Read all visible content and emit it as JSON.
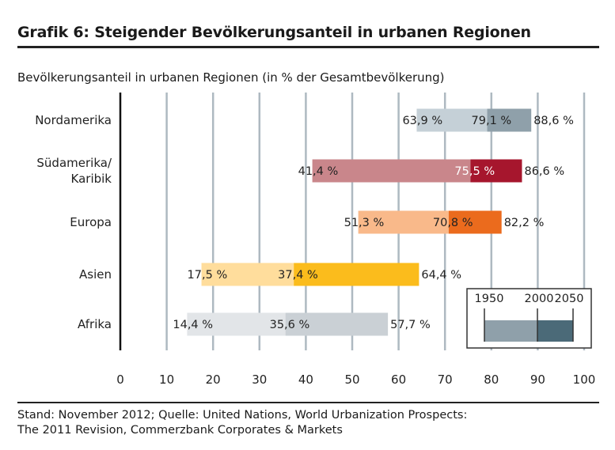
{
  "header": {
    "title": "Grafik 6: Steigender Bevölkerungsanteil in urbanen Regionen",
    "subtitle": "Bevölkerungsanteil in urbanen Regionen (in % der Gesamtbevölkerung)"
  },
  "footer": {
    "line1": "Stand: November 2012; Quelle: United Nations, World Urbanization Prospects:",
    "line2": "The 2011 Revision, Commerzbank Corporates & Markets"
  },
  "chart_data": {
    "type": "bar",
    "orientation": "horizontal-range",
    "xlim": [
      0,
      100
    ],
    "xticks": [
      0,
      10,
      20,
      30,
      40,
      50,
      60,
      70,
      80,
      90,
      100
    ],
    "grid": true,
    "legend": {
      "placement": "bottom-right",
      "labels": [
        "1950",
        "2000",
        "2050"
      ],
      "colors": [
        "#8fa0aa",
        "#4b6a78"
      ]
    },
    "categories": [
      {
        "name": "Nordamerika",
        "values": {
          "1950": 63.9,
          "2000": 79.1,
          "2050": 88.6
        },
        "labels": [
          "63,9 %",
          "79,1 %",
          "88,6 %"
        ],
        "colors": {
          "light": "#c5d0d7",
          "dark": "#8fa0aa"
        }
      },
      {
        "name": "Südamerika/ Karibik",
        "lines": [
          "Südamerika/",
          "Karibik"
        ],
        "values": {
          "1950": 41.4,
          "2000": 75.5,
          "2050": 86.6
        },
        "labels": [
          "41,4 %",
          "75,5 %",
          "86,6 %"
        ],
        "colors": {
          "light": "#c9868b",
          "dark": "#a6162d"
        }
      },
      {
        "name": "Europa",
        "values": {
          "1950": 51.3,
          "2000": 70.8,
          "2050": 82.2
        },
        "labels": [
          "51,3 %",
          "70,8 %",
          "82,2 %"
        ],
        "colors": {
          "light": "#f9b98a",
          "dark": "#eb6b1d"
        }
      },
      {
        "name": "Asien",
        "values": {
          "1950": 17.5,
          "2000": 37.4,
          "2050": 64.4
        },
        "labels": [
          "17,5 %",
          "37,4 %",
          "64,4 %"
        ],
        "colors": {
          "light": "#ffdd9c",
          "dark": "#fbbc1c"
        }
      },
      {
        "name": "Afrika",
        "values": {
          "1950": 14.4,
          "2000": 35.6,
          "2050": 57.7
        },
        "labels": [
          "14,4 %",
          "35,6 %",
          "57,7 %"
        ],
        "colors": {
          "light": "#e2e5e8",
          "dark": "#cad0d5"
        }
      }
    ]
  }
}
